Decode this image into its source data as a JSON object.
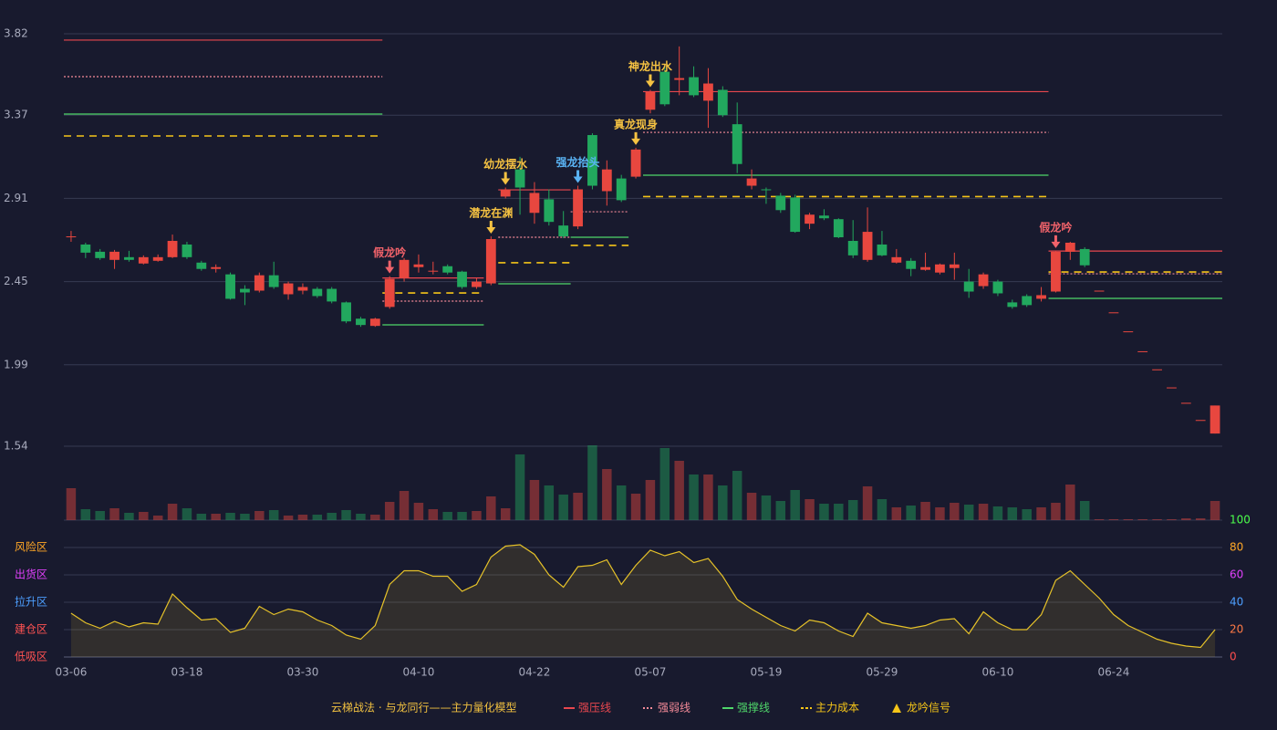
{
  "chart_data": {
    "type": "candlestick",
    "categories": [
      "03-06",
      null,
      null,
      null,
      null,
      null,
      null,
      null,
      "03-18",
      null,
      null,
      null,
      null,
      null,
      null,
      null,
      "03-30",
      null,
      null,
      null,
      null,
      null,
      null,
      null,
      "04-10",
      null,
      null,
      null,
      null,
      null,
      null,
      null,
      "04-22",
      null,
      null,
      null,
      null,
      null,
      null,
      null,
      "05-07",
      null,
      null,
      null,
      null,
      null,
      null,
      null,
      "05-19",
      null,
      null,
      null,
      null,
      null,
      null,
      null,
      "05-29",
      null,
      null,
      null,
      null,
      null,
      null,
      null,
      "06-10",
      null,
      null,
      null,
      null,
      null,
      null,
      null,
      "06-24",
      null,
      null,
      null,
      null,
      null,
      null,
      null
    ],
    "candles": [
      [
        2.7,
        2.7,
        2.73,
        2.67
      ],
      [
        2.655,
        2.61,
        2.665,
        2.58
      ],
      [
        2.615,
        2.58,
        2.63,
        2.57
      ],
      [
        2.57,
        2.615,
        2.625,
        2.52
      ],
      [
        2.585,
        2.57,
        2.62,
        2.56
      ],
      [
        2.55,
        2.585,
        2.595,
        2.545
      ],
      [
        2.565,
        2.585,
        2.6,
        2.56
      ],
      [
        2.585,
        2.675,
        2.71,
        2.58
      ],
      [
        2.655,
        2.585,
        2.67,
        2.575
      ],
      [
        2.555,
        2.52,
        2.565,
        2.51
      ],
      [
        2.52,
        2.53,
        2.545,
        2.5
      ],
      [
        2.49,
        2.355,
        2.5,
        2.35
      ],
      [
        2.41,
        2.39,
        2.43,
        2.32
      ],
      [
        2.4,
        2.485,
        2.5,
        2.39
      ],
      [
        2.485,
        2.42,
        2.56,
        2.41
      ],
      [
        2.38,
        2.44,
        2.45,
        2.35
      ],
      [
        2.4,
        2.42,
        2.44,
        2.38
      ],
      [
        2.41,
        2.37,
        2.42,
        2.36
      ],
      [
        2.41,
        2.34,
        2.42,
        2.33
      ],
      [
        2.335,
        2.23,
        2.34,
        2.22
      ],
      [
        2.245,
        2.21,
        2.255,
        2.2
      ],
      [
        2.205,
        2.245,
        2.25,
        2.2
      ],
      [
        2.31,
        2.465,
        2.48,
        2.3
      ],
      [
        2.47,
        2.57,
        2.58,
        2.45
      ],
      [
        2.53,
        2.545,
        2.6,
        2.5
      ],
      [
        2.505,
        2.51,
        2.56,
        2.49
      ],
      [
        2.535,
        2.5,
        2.545,
        2.49
      ],
      [
        2.505,
        2.42,
        2.51,
        2.41
      ],
      [
        2.42,
        2.45,
        2.47,
        2.41
      ],
      [
        2.44,
        2.685,
        2.7,
        2.43
      ],
      [
        2.92,
        2.96,
        2.97,
        2.91
      ],
      [
        3.07,
        2.97,
        3.14,
        2.82
      ],
      [
        2.83,
        2.94,
        3.0,
        2.77
      ],
      [
        2.905,
        2.78,
        2.96,
        2.76
      ],
      [
        2.76,
        2.7,
        2.84,
        2.69
      ],
      [
        2.755,
        2.96,
        2.98,
        2.74
      ],
      [
        3.26,
        2.98,
        3.27,
        2.96
      ],
      [
        2.95,
        3.07,
        3.12,
        2.87
      ],
      [
        3.02,
        2.9,
        3.04,
        2.89
      ],
      [
        3.03,
        3.18,
        3.19,
        3.02
      ],
      [
        3.4,
        3.5,
        3.51,
        3.38
      ],
      [
        3.61,
        3.43,
        3.65,
        3.42
      ],
      [
        3.565,
        3.575,
        3.75,
        3.48
      ],
      [
        3.58,
        3.48,
        3.64,
        3.47
      ],
      [
        3.45,
        3.545,
        3.63,
        3.3
      ],
      [
        3.51,
        3.37,
        3.53,
        3.36
      ],
      [
        3.32,
        3.1,
        3.44,
        3.05
      ],
      [
        2.98,
        3.02,
        3.07,
        2.96
      ],
      [
        2.96,
        2.955,
        2.97,
        2.88
      ],
      [
        2.925,
        2.845,
        2.94,
        2.83
      ],
      [
        2.915,
        2.725,
        2.93,
        2.72
      ],
      [
        2.77,
        2.82,
        2.83,
        2.74
      ],
      [
        2.815,
        2.8,
        2.85,
        2.79
      ],
      [
        2.795,
        2.695,
        2.8,
        2.69
      ],
      [
        2.675,
        2.595,
        2.79,
        2.58
      ],
      [
        2.57,
        2.725,
        2.86,
        2.56
      ],
      [
        2.655,
        2.595,
        2.73,
        2.59
      ],
      [
        2.555,
        2.585,
        2.63,
        2.55
      ],
      [
        2.565,
        2.52,
        2.58,
        2.48
      ],
      [
        2.515,
        2.53,
        2.61,
        2.51
      ],
      [
        2.5,
        2.545,
        2.55,
        2.49
      ],
      [
        2.525,
        2.545,
        2.61,
        2.46
      ],
      [
        2.45,
        2.395,
        2.52,
        2.36
      ],
      [
        2.425,
        2.49,
        2.5,
        2.41
      ],
      [
        2.45,
        2.385,
        2.46,
        2.37
      ],
      [
        2.335,
        2.31,
        2.35,
        2.3
      ],
      [
        2.37,
        2.32,
        2.38,
        2.31
      ],
      [
        2.355,
        2.375,
        2.42,
        2.34
      ],
      [
        2.395,
        2.615,
        2.62,
        2.39
      ],
      [
        2.615,
        2.665,
        2.67,
        2.57
      ],
      [
        2.63,
        2.54,
        2.64,
        2.53
      ],
      [
        2.4,
        2.4,
        2.4,
        2.4
      ],
      [
        2.28,
        2.28,
        2.28,
        2.28
      ],
      [
        2.175,
        2.175,
        2.175,
        2.175
      ],
      [
        2.065,
        2.065,
        2.065,
        2.065
      ],
      [
        1.965,
        1.965,
        1.965,
        1.965
      ],
      [
        1.865,
        1.865,
        1.865,
        1.865
      ],
      [
        1.78,
        1.78,
        1.78,
        1.78
      ],
      [
        1.685,
        1.685,
        1.685,
        1.685
      ],
      [
        1.61,
        1.765,
        1.765,
        1.61
      ]
    ],
    "volume": [
      35,
      12,
      10,
      13,
      8,
      9,
      5,
      18,
      13,
      7,
      7,
      8,
      7,
      10,
      11,
      5,
      6,
      6,
      8,
      11,
      7,
      6,
      20,
      32,
      19,
      12,
      9,
      9,
      10,
      26,
      13,
      72,
      44,
      38,
      28,
      30,
      82,
      56,
      38,
      29,
      44,
      79,
      65,
      50,
      50,
      38,
      54,
      30,
      27,
      21,
      33,
      23,
      18,
      18,
      22,
      37,
      23,
      14,
      16,
      20,
      14,
      19,
      17,
      18,
      15,
      14,
      12,
      14,
      19,
      39,
      21,
      1,
      1,
      1,
      1,
      1,
      1,
      2,
      2,
      21
    ],
    "up_color": "#e8473f",
    "down_color": "#22a85e",
    "ylim": [
      1.54,
      3.82
    ],
    "yticks": [
      3.82,
      3.37,
      2.91,
      2.45,
      1.99,
      1.54
    ],
    "grid": true,
    "levels": [
      {
        "start": 0,
        "end": 21,
        "strong_pressure": 3.785,
        "weak": 3.583,
        "support": 3.376,
        "cost": 3.255
      },
      {
        "start": 22,
        "end": 28,
        "strong_pressure": 2.47,
        "weak": 2.342,
        "support": 2.211,
        "cost": 2.387
      },
      {
        "start": 30,
        "end": 34,
        "strong_pressure": 2.957,
        "weak": 2.695,
        "support": 2.438,
        "cost": 2.554
      },
      {
        "start": 35,
        "end": 38,
        "strong_pressure": null,
        "weak": 2.836,
        "support": 2.695,
        "cost": 2.65
      },
      {
        "start": 40,
        "end": 67,
        "strong_pressure": 3.5,
        "weak": 3.275,
        "support": 3.038,
        "cost": 2.92
      },
      {
        "start": 68,
        "end": 79,
        "strong_pressure": 2.619,
        "weak": 2.493,
        "support": 2.357,
        "cost": 2.503
      }
    ],
    "signals": [
      {
        "name": "假龙吟",
        "index": 22,
        "color": "#f0626a"
      },
      {
        "name": "潜龙在渊",
        "index": 29,
        "color": "#f5c242"
      },
      {
        "name": "幼龙摆水",
        "index": 30,
        "color": "#f5c242"
      },
      {
        "name": "强龙抬头",
        "index": 35,
        "color": "#5ab4f5"
      },
      {
        "name": "真龙现身",
        "index": 39,
        "color": "#f5c242"
      },
      {
        "name": "神龙出水",
        "index": 40,
        "color": "#f5c242"
      },
      {
        "name": "假龙吟",
        "index": 68,
        "color": "#f0626a"
      }
    ],
    "oscillator": {
      "values": [
        32,
        25,
        21,
        26,
        22,
        25,
        24,
        46,
        36,
        27,
        28,
        18,
        21,
        37,
        31,
        35,
        33,
        27,
        23,
        16,
        13,
        23,
        53,
        63,
        63,
        59,
        59,
        48,
        53,
        73,
        81,
        82,
        75,
        60,
        51,
        66,
        67,
        71,
        53,
        67,
        78,
        74,
        77,
        69,
        72,
        59,
        42,
        35,
        29,
        23,
        19,
        27,
        25,
        19,
        15,
        32,
        25,
        23,
        21,
        23,
        27,
        28,
        17,
        33,
        25,
        20,
        20,
        31,
        56,
        63,
        53,
        43,
        31,
        23,
        18,
        13,
        10,
        8,
        7,
        20
      ],
      "color": "#e6c229",
      "ylim": [
        0,
        100
      ],
      "yticks": [
        0,
        20,
        40,
        60,
        80,
        100
      ],
      "ytick_colors": [
        "#ff4d4d",
        "#ff7a45",
        "#4d9fff",
        "#e040fb",
        "#ffa726",
        "#4cff4c"
      ],
      "zones": [
        {
          "name": "风险区",
          "value": 80,
          "color": "#ffa726"
        },
        {
          "name": "出货区",
          "value": 60,
          "color": "#e040fb"
        },
        {
          "name": "拉升区",
          "value": 40,
          "color": "#4d9fff"
        },
        {
          "name": "建仓区",
          "value": 20,
          "color": "#ff5252"
        },
        {
          "name": "低吸区",
          "value": 0,
          "color": "#ff5252"
        }
      ]
    },
    "legend_title": "云梯战法 · 与龙同行——主力量化模型",
    "legend": [
      {
        "name": "强压线",
        "key": "strong_pressure",
        "color": "#e8474f",
        "dash": "none"
      },
      {
        "name": "强弱线",
        "key": "weak",
        "color": "#f48a98",
        "dash": "2 2"
      },
      {
        "name": "强撑线",
        "key": "support",
        "color": "#4fd66a",
        "dash": "none"
      },
      {
        "name": "主力成本",
        "key": "cost",
        "color": "#f5c518",
        "dash": "8 6"
      },
      {
        "name": "龙吟信号",
        "key": "signal",
        "color": "#f5c518",
        "dash": "triangle"
      }
    ]
  }
}
